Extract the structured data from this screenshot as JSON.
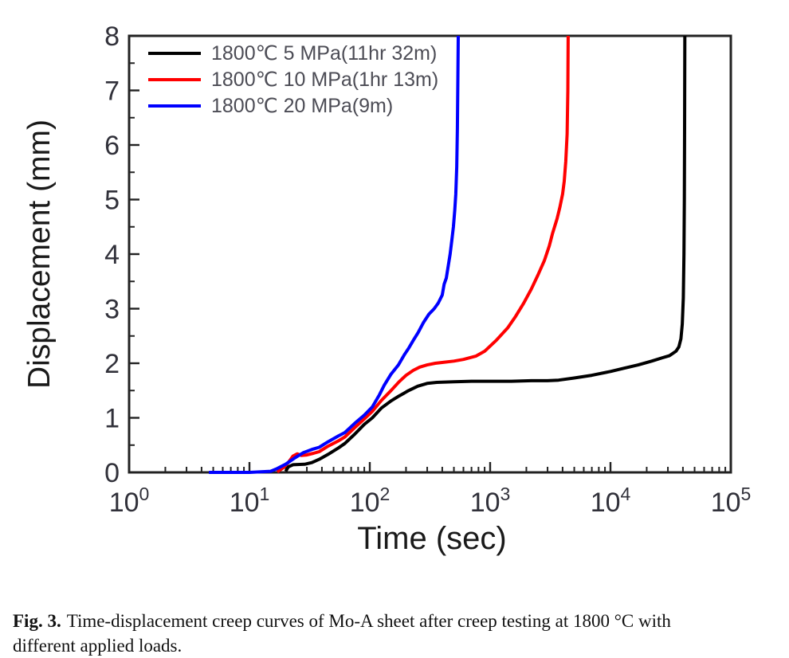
{
  "figure": {
    "caption": {
      "prefix": "Fig. 3.",
      "line1": "Time-displacement creep curves of Mo-A sheet after creep testing at 1800 °C with",
      "line2": "different applied loads."
    }
  },
  "chart_data": {
    "type": "line",
    "title": "",
    "xlabel": "Time (sec)",
    "ylabel": "Displacement (mm)",
    "x_scale": "log10",
    "xlim": [
      1,
      100000
    ],
    "ylim": [
      0,
      8
    ],
    "grid": false,
    "legend_position": "top-left",
    "x_ticks": [
      {
        "mantissa": "10",
        "exponent": "0"
      },
      {
        "mantissa": "10",
        "exponent": "1"
      },
      {
        "mantissa": "10",
        "exponent": "2"
      },
      {
        "mantissa": "10",
        "exponent": "3"
      },
      {
        "mantissa": "10",
        "exponent": "4"
      },
      {
        "mantissa": "10",
        "exponent": "5"
      }
    ],
    "y_ticks": [
      "0",
      "1",
      "2",
      "3",
      "4",
      "5",
      "6",
      "7",
      "8"
    ],
    "series": [
      {
        "name": "1800℃ 5 MPa(11hr 32m)",
        "color": "#000000",
        "points": [
          [
            20,
            0.02
          ],
          [
            21,
            0.1
          ],
          [
            23,
            0.14
          ],
          [
            29,
            0.15
          ],
          [
            33,
            0.18
          ],
          [
            38,
            0.24
          ],
          [
            45,
            0.33
          ],
          [
            55,
            0.45
          ],
          [
            62,
            0.53
          ],
          [
            75,
            0.7
          ],
          [
            90,
            0.88
          ],
          [
            105,
            1.0
          ],
          [
            125,
            1.18
          ],
          [
            150,
            1.31
          ],
          [
            175,
            1.4
          ],
          [
            210,
            1.5
          ],
          [
            250,
            1.58
          ],
          [
            300,
            1.63
          ],
          [
            360,
            1.65
          ],
          [
            500,
            1.66
          ],
          [
            700,
            1.67
          ],
          [
            1000,
            1.67
          ],
          [
            1500,
            1.67
          ],
          [
            2200,
            1.68
          ],
          [
            3000,
            1.68
          ],
          [
            3700,
            1.69
          ],
          [
            5000,
            1.73
          ],
          [
            7000,
            1.78
          ],
          [
            10000,
            1.85
          ],
          [
            13000,
            1.91
          ],
          [
            17000,
            1.97
          ],
          [
            22000,
            2.04
          ],
          [
            27000,
            2.1
          ],
          [
            31000,
            2.14
          ],
          [
            35000,
            2.22
          ],
          [
            37000,
            2.3
          ],
          [
            38500,
            2.45
          ],
          [
            39500,
            2.72
          ],
          [
            40300,
            3.2
          ],
          [
            40800,
            4.0
          ],
          [
            41100,
            5.0
          ],
          [
            41300,
            6.3
          ],
          [
            41500,
            8.0
          ]
        ]
      },
      {
        "name": "1800℃ 10 MPa(1hr 13m)",
        "color": "#ff0000",
        "points": [
          [
            17,
            0.01
          ],
          [
            19,
            0.08
          ],
          [
            21,
            0.18
          ],
          [
            23,
            0.3
          ],
          [
            25,
            0.34
          ],
          [
            27,
            0.31
          ],
          [
            30,
            0.32
          ],
          [
            34,
            0.35
          ],
          [
            38,
            0.38
          ],
          [
            45,
            0.48
          ],
          [
            55,
            0.58
          ],
          [
            62,
            0.65
          ],
          [
            75,
            0.82
          ],
          [
            90,
            0.98
          ],
          [
            105,
            1.12
          ],
          [
            125,
            1.32
          ],
          [
            150,
            1.5
          ],
          [
            175,
            1.66
          ],
          [
            200,
            1.78
          ],
          [
            230,
            1.87
          ],
          [
            260,
            1.93
          ],
          [
            300,
            1.97
          ],
          [
            350,
            2.0
          ],
          [
            420,
            2.02
          ],
          [
            500,
            2.04
          ],
          [
            600,
            2.07
          ],
          [
            760,
            2.13
          ],
          [
            900,
            2.22
          ],
          [
            1125,
            2.42
          ],
          [
            1400,
            2.65
          ],
          [
            1630,
            2.86
          ],
          [
            1900,
            3.1
          ],
          [
            2200,
            3.36
          ],
          [
            2500,
            3.62
          ],
          [
            2820,
            3.88
          ],
          [
            3100,
            4.15
          ],
          [
            3300,
            4.38
          ],
          [
            3600,
            4.65
          ],
          [
            3800,
            4.86
          ],
          [
            4000,
            5.1
          ],
          [
            4130,
            5.34
          ],
          [
            4250,
            5.7
          ],
          [
            4360,
            6.2
          ],
          [
            4420,
            7.0
          ],
          [
            4450,
            8.0
          ]
        ]
      },
      {
        "name": "1800℃ 20 MPa(9m)",
        "color": "#0000ff",
        "points": [
          [
            4.6,
            0.0
          ],
          [
            10,
            0.0
          ],
          [
            15,
            0.02
          ],
          [
            17,
            0.07
          ],
          [
            20,
            0.15
          ],
          [
            24,
            0.27
          ],
          [
            28,
            0.36
          ],
          [
            33,
            0.42
          ],
          [
            38,
            0.46
          ],
          [
            45,
            0.56
          ],
          [
            55,
            0.67
          ],
          [
            62,
            0.73
          ],
          [
            75,
            0.9
          ],
          [
            90,
            1.05
          ],
          [
            105,
            1.2
          ],
          [
            120,
            1.42
          ],
          [
            132,
            1.6
          ],
          [
            150,
            1.8
          ],
          [
            173,
            1.97
          ],
          [
            193,
            2.15
          ],
          [
            211,
            2.28
          ],
          [
            230,
            2.42
          ],
          [
            252,
            2.56
          ],
          [
            280,
            2.75
          ],
          [
            310,
            2.9
          ],
          [
            343,
            3.0
          ],
          [
            370,
            3.1
          ],
          [
            400,
            3.25
          ],
          [
            415,
            3.45
          ],
          [
            432,
            3.56
          ],
          [
            450,
            3.8
          ],
          [
            465,
            4.0
          ],
          [
            480,
            4.25
          ],
          [
            495,
            4.5
          ],
          [
            508,
            4.8
          ],
          [
            518,
            5.1
          ],
          [
            528,
            5.6
          ],
          [
            534,
            6.3
          ],
          [
            539,
            7.2
          ],
          [
            543,
            8.0
          ]
        ]
      }
    ]
  }
}
